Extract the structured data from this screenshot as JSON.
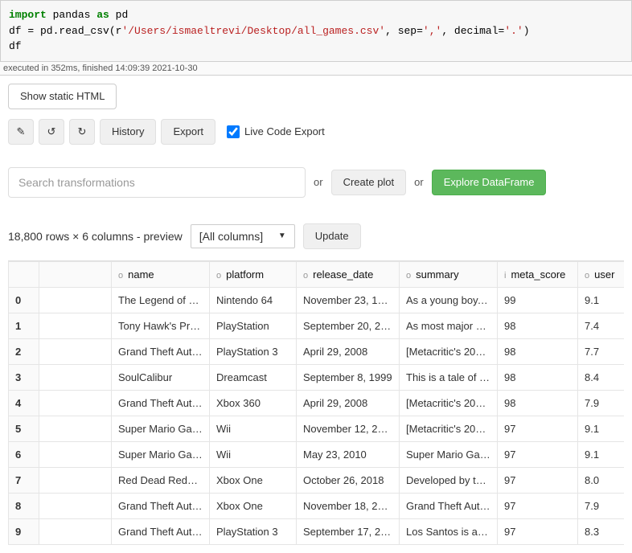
{
  "code": {
    "line1_import": "import",
    "line1_pandas": "pandas",
    "line1_as": "as",
    "line1_pd": "pd",
    "line2_assign": "df = pd.read_csv(r",
    "line2_path": "'/Users/ismaeltrevi/Desktop/all_games.csv'",
    "line2_sep": ", sep=",
    "line2_sep_val": "','",
    "line2_dec": ", decimal=",
    "line2_dec_val": "'.'",
    "line2_close": ")",
    "line3": "df"
  },
  "exec_status": "executed in 352ms, finished 14:09:39 2021-10-30",
  "buttons": {
    "show_static_html": "Show static HTML",
    "history": "History",
    "export": "Export",
    "live_code_export": "Live Code Export",
    "create_plot": "Create plot",
    "explore_dataframe": "Explore DataFrame",
    "update": "Update"
  },
  "search": {
    "placeholder": "Search transformations",
    "or": "or"
  },
  "preview": {
    "summary": "18,800 rows × 6 columns - preview",
    "all_columns": "[All columns]"
  },
  "table": {
    "columns": [
      {
        "type": "o",
        "name": "name"
      },
      {
        "type": "o",
        "name": "platform"
      },
      {
        "type": "o",
        "name": "release_date"
      },
      {
        "type": "o",
        "name": "summary"
      },
      {
        "type": "i",
        "name": "meta_score"
      },
      {
        "type": "o",
        "name": "user"
      }
    ],
    "rows": [
      {
        "idx": "0",
        "name": "The Legend of Z…",
        "platform": "Nintendo 64",
        "release_date": "November 23, 19…",
        "summary": "As a young boy, …",
        "meta_score": "99",
        "user": "9.1"
      },
      {
        "idx": "1",
        "name": "Tony Hawk's Pro…",
        "platform": "PlayStation",
        "release_date": "September 20, 2…",
        "summary": "As most major p…",
        "meta_score": "98",
        "user": "7.4"
      },
      {
        "idx": "2",
        "name": "Grand Theft Auto…",
        "platform": "PlayStation 3",
        "release_date": "April 29, 2008",
        "summary": "[Metacritic's 200…",
        "meta_score": "98",
        "user": "7.7"
      },
      {
        "idx": "3",
        "name": "SoulCalibur",
        "platform": "Dreamcast",
        "release_date": "September 8, 1999",
        "summary": "This is a tale of s…",
        "meta_score": "98",
        "user": "8.4"
      },
      {
        "idx": "4",
        "name": "Grand Theft Auto…",
        "platform": "Xbox 360",
        "release_date": "April 29, 2008",
        "summary": "[Metacritic's 200…",
        "meta_score": "98",
        "user": "7.9"
      },
      {
        "idx": "5",
        "name": "Super Mario Gal…",
        "platform": "Wii",
        "release_date": "November 12, 20…",
        "summary": "[Metacritic's 200…",
        "meta_score": "97",
        "user": "9.1"
      },
      {
        "idx": "6",
        "name": "Super Mario Gal…",
        "platform": "Wii",
        "release_date": "May 23, 2010",
        "summary": "Super Mario Gal…",
        "meta_score": "97",
        "user": "9.1"
      },
      {
        "idx": "7",
        "name": "Red Dead Rede…",
        "platform": "Xbox One",
        "release_date": "October 26, 2018",
        "summary": "Developed by th…",
        "meta_score": "97",
        "user": "8.0"
      },
      {
        "idx": "8",
        "name": "Grand Theft Auto V",
        "platform": "Xbox One",
        "release_date": "November 18, 20…",
        "summary": "Grand Theft Auto…",
        "meta_score": "97",
        "user": "7.9"
      },
      {
        "idx": "9",
        "name": "Grand Theft Auto V",
        "platform": "PlayStation 3",
        "release_date": "September 17, 2…",
        "summary": "Los Santos is a v…",
        "meta_score": "97",
        "user": "8.3"
      }
    ]
  },
  "icons": {
    "pencil": "✎",
    "undo": "↺",
    "redo": "↻",
    "dropdown": "▼"
  }
}
